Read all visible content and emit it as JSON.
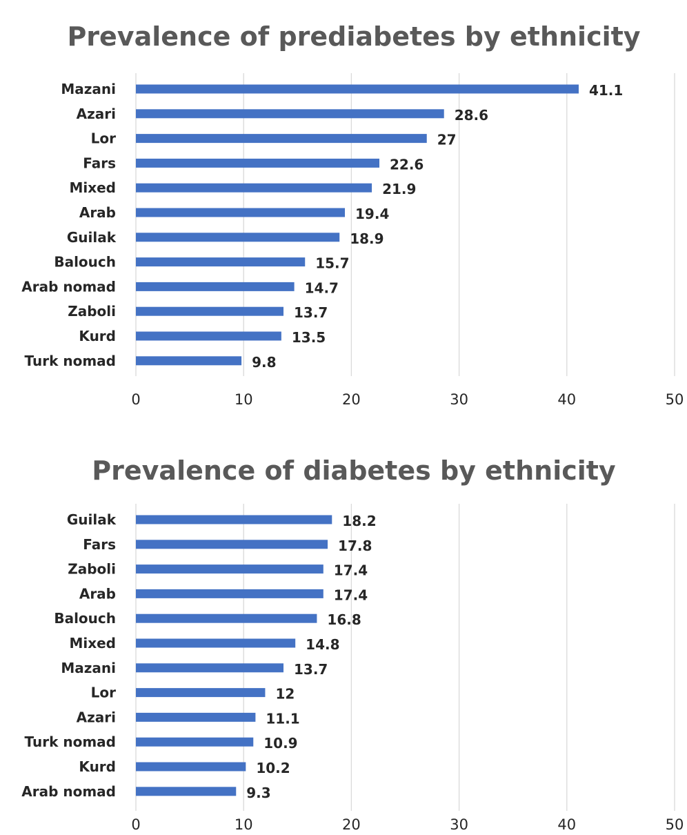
{
  "chart_data": [
    {
      "type": "bar",
      "orientation": "horizontal",
      "title": "Prevalence of prediabetes by ethnicity",
      "categories": [
        "Mazani",
        "Azari",
        "Lor",
        "Fars",
        "Mixed",
        "Arab",
        "Guilak",
        "Balouch",
        "Arab nomad",
        "Zaboli",
        "Kurd",
        "Turk nomad"
      ],
      "values": [
        41.1,
        28.6,
        27,
        22.6,
        21.9,
        19.4,
        18.9,
        15.7,
        14.7,
        13.7,
        13.5,
        9.8
      ],
      "value_labels": [
        "41.1",
        "28.6",
        "27",
        "22.6",
        "21.9",
        "19.4",
        "18.9",
        "15.7",
        "14.7",
        "13.7",
        "13.5",
        "9.8"
      ],
      "xlim": [
        0,
        50
      ],
      "xticks": [
        "0",
        "10",
        "20",
        "30",
        "40",
        "50"
      ],
      "xlabel": "",
      "ylabel": "",
      "grid": true,
      "bar_color": "#4472c4"
    },
    {
      "type": "bar",
      "orientation": "horizontal",
      "title": "Prevalence of diabetes by ethnicity",
      "categories": [
        "Guilak",
        "Fars",
        "Zaboli",
        "Arab",
        "Balouch",
        "Mixed",
        "Mazani",
        "Lor",
        "Azari",
        "Turk nomad",
        "Kurd",
        "Arab nomad"
      ],
      "values": [
        18.2,
        17.8,
        17.4,
        17.4,
        16.8,
        14.8,
        13.7,
        12,
        11.1,
        10.9,
        10.2,
        9.3
      ],
      "value_labels": [
        "18.2",
        "17.8",
        "17.4",
        "17.4",
        "16.8",
        "14.8",
        "13.7",
        "12",
        "11.1",
        "10.9",
        "10.2",
        "9.3"
      ],
      "xlim": [
        0,
        50
      ],
      "xticks": [
        "0",
        "10",
        "20",
        "30",
        "40",
        "50"
      ],
      "xlabel": "",
      "ylabel": "",
      "grid": true,
      "bar_color": "#4472c4"
    }
  ]
}
